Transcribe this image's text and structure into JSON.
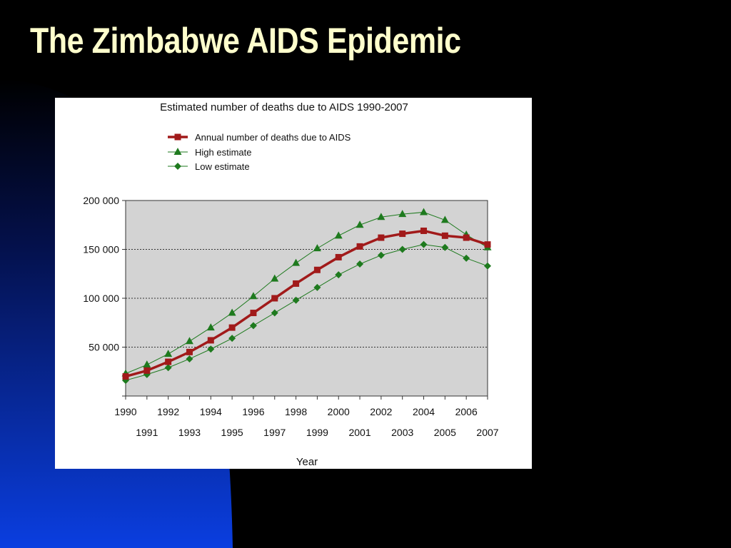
{
  "slide": {
    "title": "The Zimbabwe AIDS Epidemic"
  },
  "colors": {
    "background": "#000000",
    "gradient_blue": "#0a3ee0",
    "title_color": "#ffffcc",
    "plot_background": "#d3d3d3",
    "series_annual": "#a11a1a",
    "series_estimates": "#1e7a1e"
  },
  "chart_data": {
    "type": "line",
    "title": "Estimated number of deaths due to AIDS 1990-2007",
    "xlabel": "Year",
    "ylabel": "",
    "x": [
      1990,
      1991,
      1992,
      1993,
      1994,
      1995,
      1996,
      1997,
      1998,
      1999,
      2000,
      2001,
      2002,
      2003,
      2004,
      2005,
      2006,
      2007
    ],
    "ylim": [
      0,
      200000
    ],
    "y_ticks": [
      50000,
      100000,
      150000,
      200000
    ],
    "y_tick_labels": [
      "50 000",
      "100 000",
      "150 000",
      "200 000"
    ],
    "grid": "horizontal dotted",
    "legend_position": "top",
    "series": [
      {
        "name": "Annual number of deaths due to AIDS",
        "marker": "square",
        "color": "#a11a1a",
        "values": [
          20000,
          26000,
          35000,
          45000,
          57000,
          70000,
          85000,
          100000,
          115000,
          129000,
          142000,
          153000,
          162000,
          166000,
          169000,
          164000,
          162000,
          155000
        ]
      },
      {
        "name": "High estimate",
        "marker": "triangle",
        "color": "#1e7a1e",
        "values": [
          23000,
          32000,
          43000,
          56000,
          70000,
          85000,
          102000,
          120000,
          136000,
          151000,
          164000,
          175000,
          183000,
          186000,
          188000,
          180000,
          165000,
          152000
        ]
      },
      {
        "name": "Low estimate",
        "marker": "diamond",
        "color": "#1e7a1e",
        "values": [
          16000,
          22000,
          29000,
          38000,
          48000,
          59000,
          72000,
          85000,
          98000,
          111000,
          124000,
          135000,
          144000,
          150000,
          155000,
          152000,
          141000,
          133000
        ]
      }
    ]
  }
}
